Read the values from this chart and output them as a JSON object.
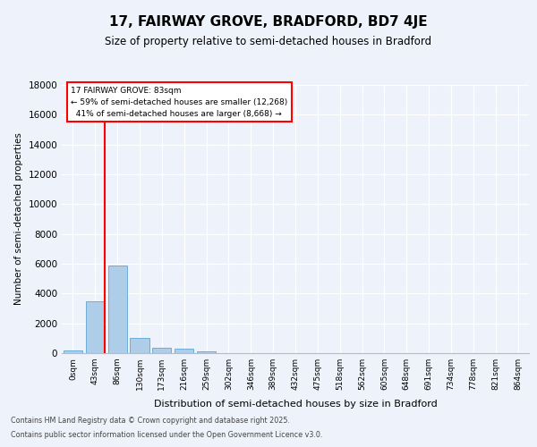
{
  "title": "17, FAIRWAY GROVE, BRADFORD, BD7 4JE",
  "subtitle": "Size of property relative to semi-detached houses in Bradford",
  "xlabel": "Distribution of semi-detached houses by size in Bradford",
  "ylabel": "Number of semi-detached properties",
  "bar_labels": [
    "0sqm",
    "43sqm",
    "86sqm",
    "130sqm",
    "173sqm",
    "216sqm",
    "259sqm",
    "302sqm",
    "346sqm",
    "389sqm",
    "432sqm",
    "475sqm",
    "518sqm",
    "562sqm",
    "605sqm",
    "648sqm",
    "691sqm",
    "734sqm",
    "778sqm",
    "821sqm",
    "864sqm"
  ],
  "bar_values": [
    200,
    3500,
    5900,
    1000,
    350,
    300,
    150,
    0,
    0,
    0,
    0,
    0,
    0,
    0,
    0,
    0,
    0,
    0,
    0,
    0,
    0
  ],
  "bar_color": "#aecde8",
  "bar_edge_color": "#6aaed6",
  "property_label": "17 FAIRWAY GROVE: 83sqm",
  "pct_smaller": 59,
  "pct_smaller_n": "12,268",
  "pct_larger": 41,
  "pct_larger_n": "8,668",
  "ylim_max": 18000,
  "yticks": [
    0,
    2000,
    4000,
    6000,
    8000,
    10000,
    12000,
    14000,
    16000,
    18000
  ],
  "background_color": "#eef2fb",
  "grid_color": "#ffffff",
  "footer_line1": "Contains HM Land Registry data © Crown copyright and database right 2025.",
  "footer_line2": "Contains public sector information licensed under the Open Government Licence v3.0."
}
